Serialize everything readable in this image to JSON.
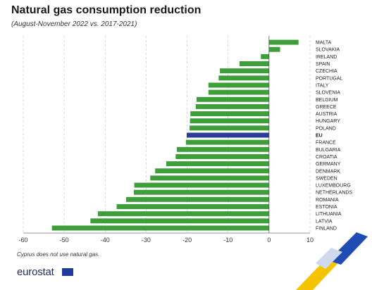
{
  "chart_data": {
    "type": "bar",
    "orientation": "horizontal",
    "title": "Natural gas consumption reduction",
    "subtitle": "(August-November 2022 vs. 2017-2021)",
    "categories": [
      "MALTA",
      "SLOVAKIA",
      "IRELAND",
      "SPAIN",
      "CZECHIA",
      "PORTUGAL",
      "ITALY",
      "SLOVENIA",
      "BELGIUM",
      "GREECE",
      "AUSTRIA",
      "HUNGARY",
      "POLAND",
      "EU",
      "FRANCE",
      "BULGARIA",
      "CROATIA",
      "GERMANY",
      "DENMARK",
      "SWEDEN",
      "LUXEMBOURG",
      "NETHERLANDS",
      "ROMANIA",
      "ESTONIA",
      "LITHUANIA",
      "LATVIA",
      "FINLAND"
    ],
    "values": [
      7.2,
      2.7,
      -2.0,
      -7.2,
      -12.0,
      -12.3,
      -14.8,
      -14.8,
      -17.7,
      -17.9,
      -19.2,
      -19.3,
      -19.4,
      -20.1,
      -20.3,
      -22.5,
      -22.8,
      -25.1,
      -27.8,
      -29.0,
      -32.9,
      -33.0,
      -34.9,
      -37.2,
      -41.8,
      -43.6,
      -53.0
    ],
    "highlight": "EU",
    "bar_color": "#3d9e3a",
    "highlight_color": "#2a3d96",
    "xlim": [
      -60,
      10
    ],
    "xticks": [
      -60,
      -50,
      -40,
      -30,
      -20,
      -10,
      0,
      10
    ],
    "grid": "vertical dashed"
  },
  "footnote": "Cyprus does not use natural gas.",
  "logo": {
    "text": "eurostat",
    "icon": "eu-flag-icon"
  },
  "decoration_colors": [
    "#f5c400",
    "#1f4bb4",
    "#cfd8ec"
  ]
}
